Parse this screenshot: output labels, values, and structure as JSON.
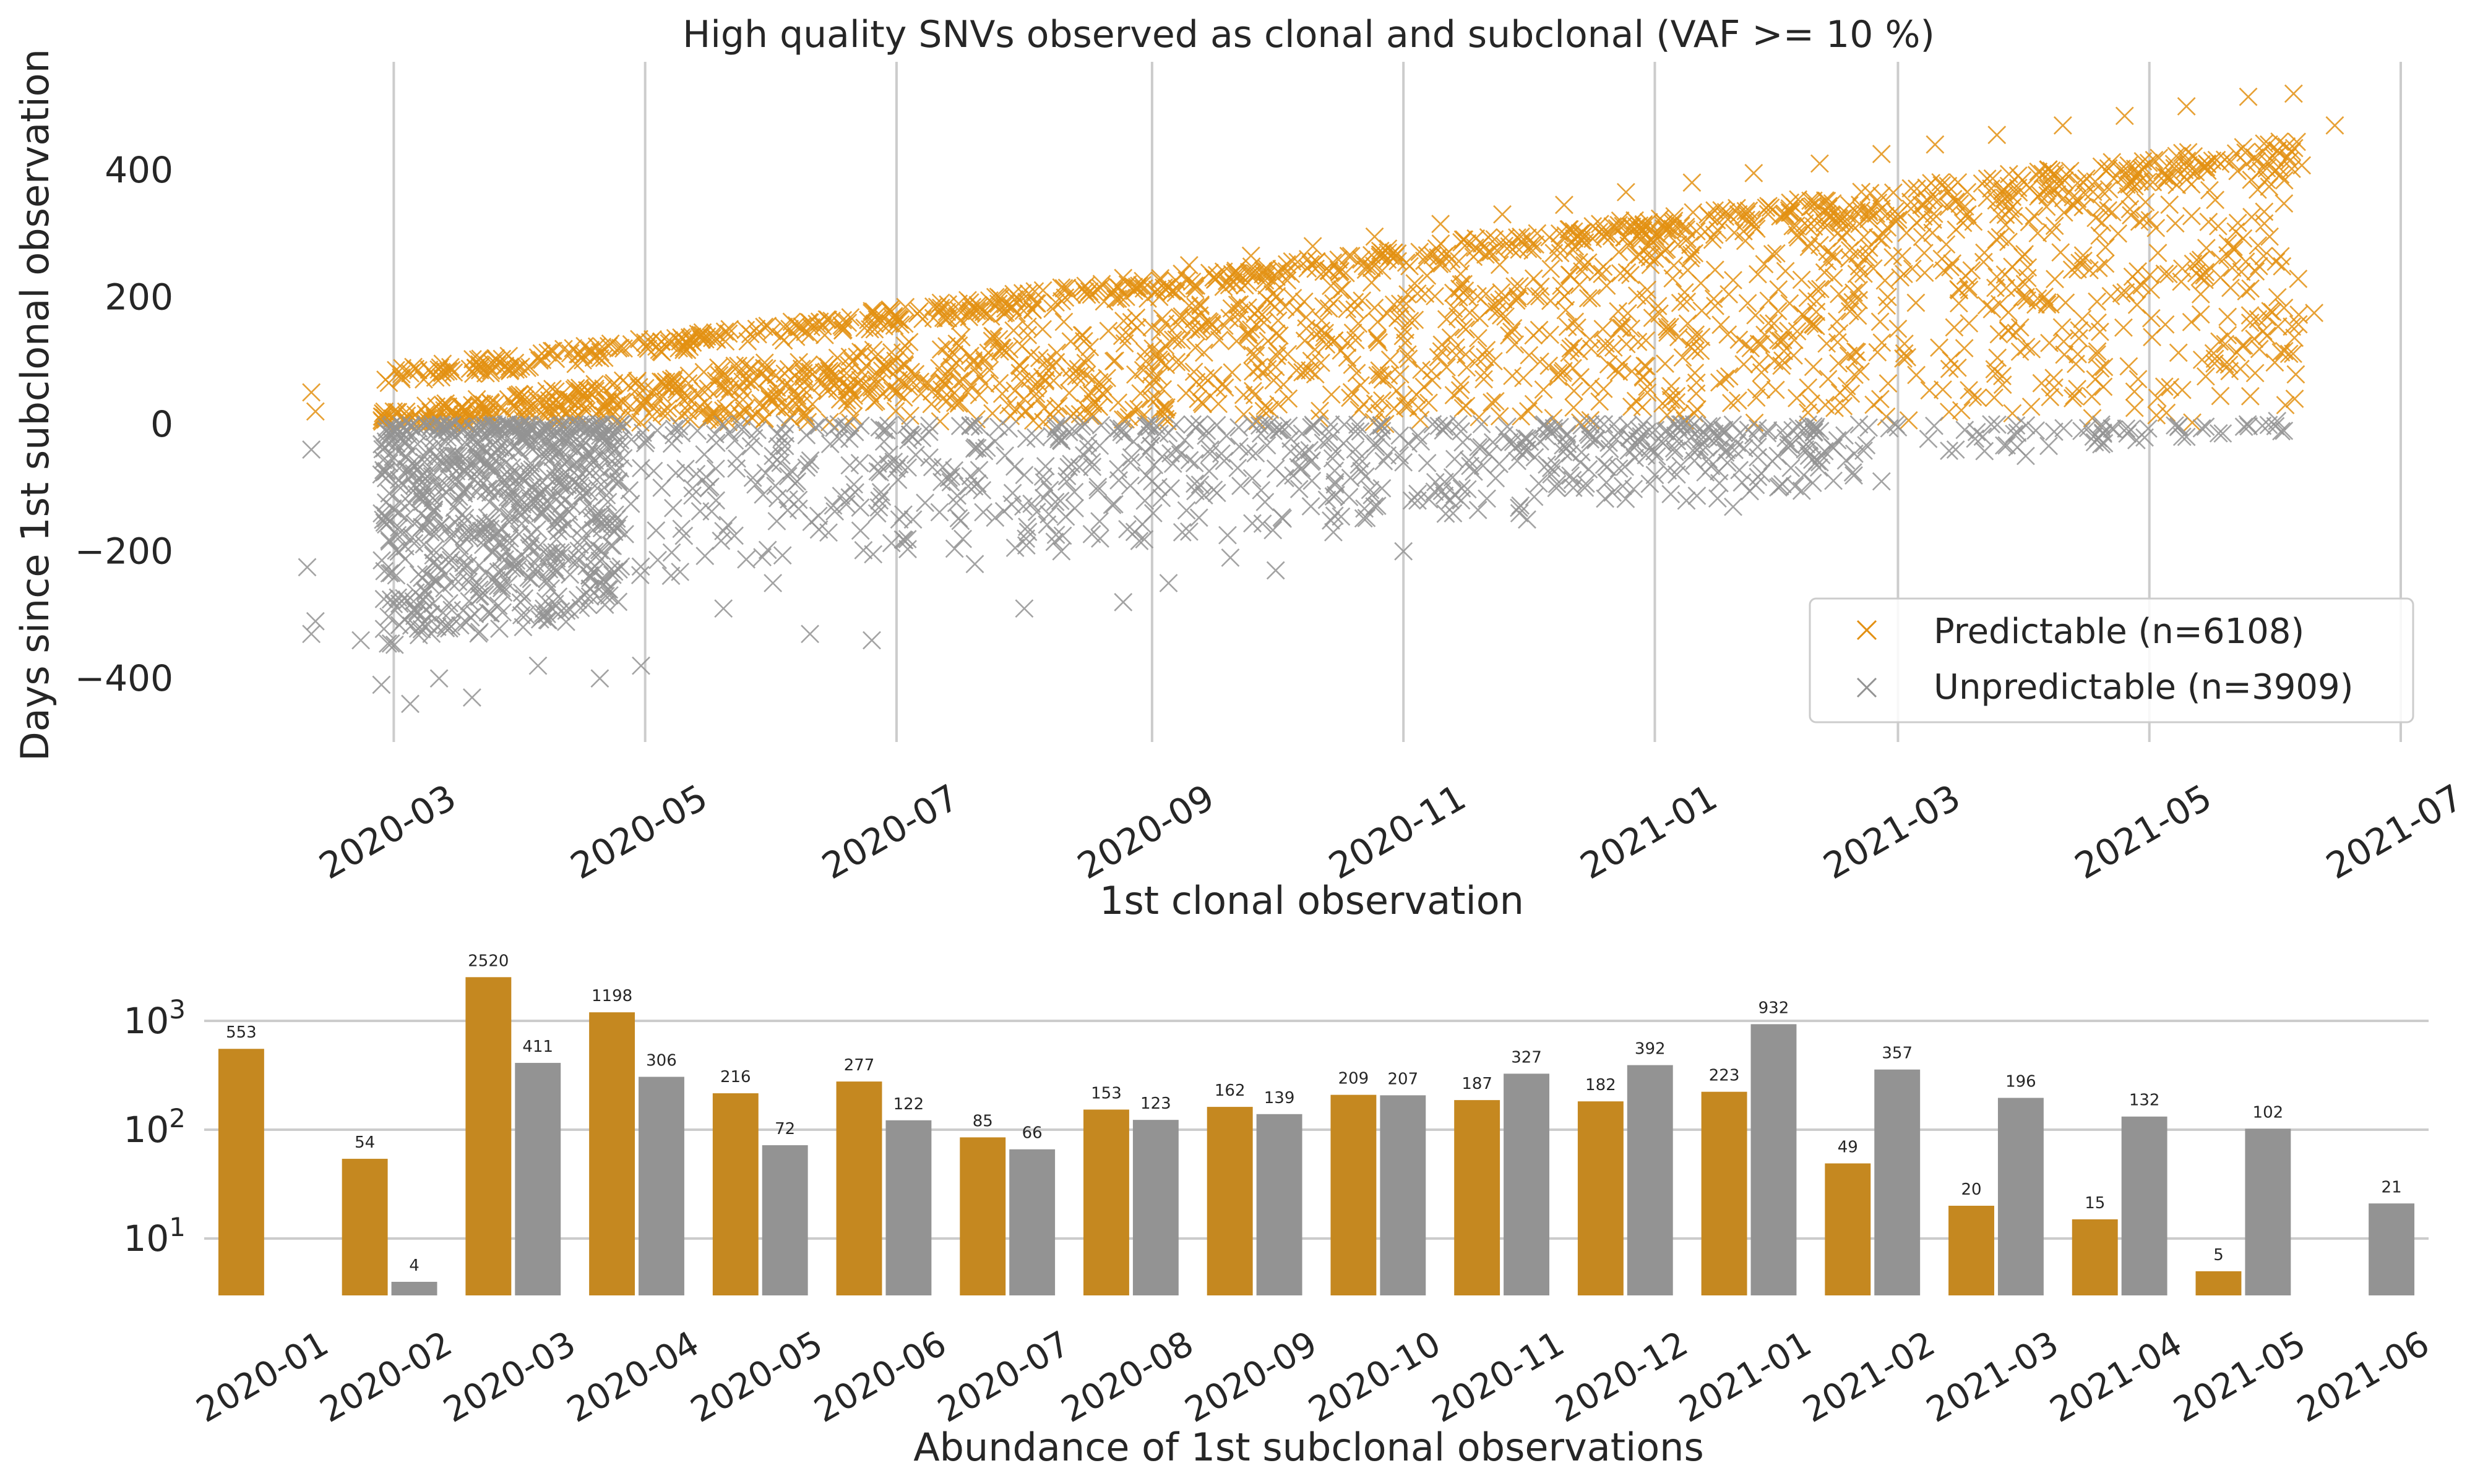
{
  "chart_data": [
    {
      "type": "scatter",
      "title": "High quality SNVs observed as clonal and subclonal (VAF >= 10 %)",
      "xlabel": "1st clonal observation",
      "ylabel": "Days since 1st subclonal observation",
      "x_ticks": [
        "2020-03",
        "2020-05",
        "2020-07",
        "2020-09",
        "2020-11",
        "2021-01",
        "2021-03",
        "2021-05",
        "2021-07"
      ],
      "y_ticks": [
        400,
        200,
        0,
        -200,
        -400
      ],
      "xlim": [
        "2020-01-15",
        "2021-07-01"
      ],
      "ylim": [
        -500,
        570
      ],
      "grid": "vertical",
      "legend": "bottom-right",
      "marker": "x",
      "series": [
        {
          "name": "Predictable (n=6108)",
          "color": "#e39012",
          "points": [
            [
              "2020-02-10",
              50
            ],
            [
              "2020-02-11",
              20
            ],
            [
              "2020-02-28",
              70
            ],
            [
              "2020-03-05",
              80
            ],
            [
              "2020-03-15",
              85
            ],
            [
              "2020-03-25",
              95
            ],
            [
              "2020-04-05",
              105
            ],
            [
              "2020-04-15",
              110
            ],
            [
              "2020-04-25",
              120
            ],
            [
              "2020-05-05",
              130
            ],
            [
              "2020-05-15",
              140
            ],
            [
              "2020-05-28",
              150
            ],
            [
              "2020-06-10",
              160
            ],
            [
              "2020-06-25",
              175
            ],
            [
              "2020-07-10",
              185
            ],
            [
              "2020-07-25",
              200
            ],
            [
              "2020-08-10",
              215
            ],
            [
              "2020-08-25",
              230
            ],
            [
              "2020-09-10",
              250
            ],
            [
              "2020-09-25",
              265
            ],
            [
              "2020-10-10",
              280
            ],
            [
              "2020-10-25",
              295
            ],
            [
              "2020-11-10",
              315
            ],
            [
              "2020-11-25",
              330
            ],
            [
              "2020-12-10",
              345
            ],
            [
              "2020-12-25",
              365
            ],
            [
              "2021-01-10",
              380
            ],
            [
              "2021-01-25",
              395
            ],
            [
              "2021-02-10",
              410
            ],
            [
              "2021-02-25",
              425
            ],
            [
              "2021-03-10",
              440
            ],
            [
              "2021-03-25",
              455
            ],
            [
              "2021-04-10",
              470
            ],
            [
              "2021-04-25",
              485
            ],
            [
              "2021-05-10",
              500
            ],
            [
              "2021-05-25",
              515
            ],
            [
              "2021-06-05",
              520
            ],
            [
              "2021-06-15",
              470
            ],
            [
              "2021-06-10",
              175
            ],
            [
              "2021-06-01",
              430
            ],
            [
              "2020-03-01",
              20
            ],
            [
              "2020-03-20",
              30
            ],
            [
              "2020-04-10",
              35
            ],
            [
              "2020-05-01",
              40
            ],
            [
              "2020-05-20",
              60
            ],
            [
              "2020-06-15",
              80
            ],
            [
              "2020-07-15",
              110
            ],
            [
              "2020-08-15",
              140
            ],
            [
              "2020-09-15",
              160
            ],
            [
              "2020-10-15",
              190
            ],
            [
              "2020-11-15",
              220
            ],
            [
              "2020-12-15",
              250
            ],
            [
              "2021-01-15",
              290
            ],
            [
              "2021-02-15",
              320
            ],
            [
              "2021-03-15",
              350
            ],
            [
              "2021-04-15",
              380
            ],
            [
              "2021-05-15",
              410
            ],
            [
              "2021-05-30",
              440
            ],
            [
              "2020-12-20",
              120
            ],
            [
              "2021-01-05",
              60
            ],
            [
              "2021-02-01",
              100
            ],
            [
              "2021-03-01",
              150
            ],
            [
              "2021-04-01",
              200
            ],
            [
              "2021-04-20",
              90
            ],
            [
              "2021-05-20",
              140
            ],
            [
              "2021-06-03",
              30
            ],
            [
              "2020-09-01",
              60
            ],
            [
              "2020-10-01",
              90
            ],
            [
              "2020-11-01",
              40
            ],
            [
              "2020-07-01",
              50
            ]
          ]
        },
        {
          "name": "Unpredictable (n=3909)",
          "color": "#939393",
          "points": [
            [
              "2020-02-10",
              -40
            ],
            [
              "2020-02-09",
              -225
            ],
            [
              "2020-02-11",
              -310
            ],
            [
              "2020-02-10",
              -330
            ],
            [
              "2020-02-22",
              -340
            ],
            [
              "2020-02-27",
              -410
            ],
            [
              "2020-03-05",
              -440
            ],
            [
              "2020-03-12",
              -400
            ],
            [
              "2020-03-20",
              -430
            ],
            [
              "2020-03-10",
              -300
            ],
            [
              "2020-03-15",
              -250
            ],
            [
              "2020-03-25",
              -200
            ],
            [
              "2020-04-05",
              -380
            ],
            [
              "2020-04-20",
              -400
            ],
            [
              "2020-04-30",
              -380
            ],
            [
              "2020-04-10",
              -150
            ],
            [
              "2020-05-05",
              -100
            ],
            [
              "2020-05-20",
              -290
            ],
            [
              "2020-06-01",
              -250
            ],
            [
              "2020-06-10",
              -330
            ],
            [
              "2020-06-25",
              -340
            ],
            [
              "2020-07-05",
              -150
            ],
            [
              "2020-07-20",
              -220
            ],
            [
              "2020-08-01",
              -290
            ],
            [
              "2020-08-10",
              -200
            ],
            [
              "2020-08-25",
              -280
            ],
            [
              "2020-09-05",
              -250
            ],
            [
              "2020-09-20",
              -210
            ],
            [
              "2020-10-01",
              -230
            ],
            [
              "2020-10-15",
              -170
            ],
            [
              "2020-11-01",
              -200
            ],
            [
              "2020-11-15",
              -120
            ],
            [
              "2020-12-01",
              -150
            ],
            [
              "2020-12-15",
              -100
            ],
            [
              "2021-01-01",
              -80
            ],
            [
              "2021-01-20",
              -130
            ],
            [
              "2021-02-10",
              -60
            ],
            [
              "2021-02-25",
              -90
            ],
            [
              "2021-03-15",
              -40
            ],
            [
              "2021-04-01",
              -50
            ],
            [
              "2021-04-20",
              -30
            ],
            [
              "2021-05-10",
              -20
            ],
            [
              "2021-06-01",
              5
            ],
            [
              "2020-03-01",
              -10
            ],
            [
              "2020-04-01",
              -20
            ],
            [
              "2020-05-01",
              -30
            ],
            [
              "2020-06-01",
              -50
            ],
            [
              "2020-07-01",
              -70
            ],
            [
              "2020-08-01",
              -80
            ],
            [
              "2020-09-01",
              -90
            ],
            [
              "2020-10-01",
              -70
            ],
            [
              "2020-11-01",
              -60
            ],
            [
              "2020-12-01",
              -40
            ],
            [
              "2021-01-10",
              -20
            ],
            [
              "2021-02-01",
              -10
            ],
            [
              "2021-03-01",
              -5
            ]
          ]
        }
      ],
      "dense_bands": [
        {
          "series": 0,
          "x_from": "2020-02-27",
          "x_to": "2021-06-07",
          "y_low_start": 0,
          "y_low_end": 0,
          "y_high_start": 20,
          "y_high_end": 420,
          "count": 1400
        },
        {
          "series": 0,
          "x_from": "2020-02-27",
          "x_to": "2021-06-07",
          "y_low_start": 60,
          "y_low_end": 400,
          "y_high_start": 85,
          "y_high_end": 450,
          "count": 700
        },
        {
          "series": 1,
          "x_from": "2020-02-27",
          "x_to": "2020-04-25",
          "y_low_start": -350,
          "y_low_end": -300,
          "y_high_start": 0,
          "y_high_end": 0,
          "count": 700
        },
        {
          "series": 1,
          "x_from": "2020-04-25",
          "x_to": "2021-02-20",
          "y_low_start": -250,
          "y_low_end": -100,
          "y_high_start": 0,
          "y_high_end": 0,
          "count": 650
        },
        {
          "series": 1,
          "x_from": "2021-02-20",
          "x_to": "2021-06-05",
          "y_low_start": -60,
          "y_low_end": -10,
          "y_high_start": 0,
          "y_high_end": 0,
          "count": 60
        }
      ]
    },
    {
      "type": "bar",
      "xlabel": "Abundance of 1st subclonal observations",
      "ylabel": "",
      "y_scale": "log",
      "ylim": [
        3,
        4000
      ],
      "y_ticks": [
        {
          "base": "10",
          "exp": "1",
          "value": 10
        },
        {
          "base": "10",
          "exp": "2",
          "value": 100
        },
        {
          "base": "10",
          "exp": "3",
          "value": 1000
        }
      ],
      "grid": "horizontal",
      "categories": [
        "2020-01",
        "2020-02",
        "2020-03",
        "2020-04",
        "2020-05",
        "2020-06",
        "2020-07",
        "2020-08",
        "2020-09",
        "2020-10",
        "2020-11",
        "2020-12",
        "2021-01",
        "2021-02",
        "2021-03",
        "2021-04",
        "2021-05",
        "2021-06"
      ],
      "series": [
        {
          "color": "#c58820",
          "values": [
            553,
            54,
            2520,
            1198,
            216,
            277,
            85,
            153,
            162,
            209,
            187,
            182,
            223,
            49,
            20,
            15,
            5,
            null
          ]
        },
        {
          "color": "#939393",
          "values": [
            null,
            4,
            411,
            306,
            72,
            122,
            66,
            123,
            139,
            207,
            327,
            392,
            932,
            357,
            196,
            132,
            102,
            21
          ]
        }
      ]
    }
  ]
}
